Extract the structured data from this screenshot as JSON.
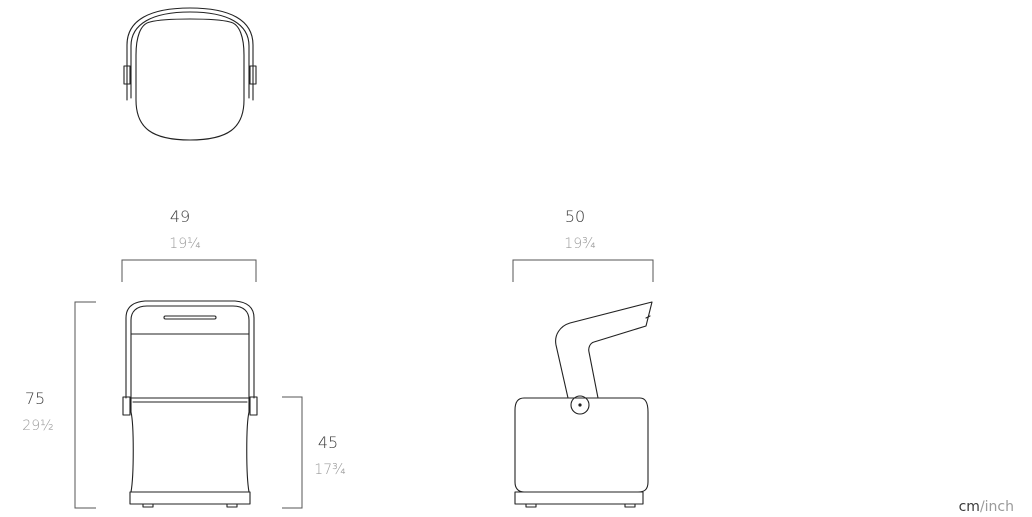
{
  "views": {
    "top": {},
    "front": {
      "width": {
        "cm": "49",
        "inch": "19¼"
      },
      "height": {
        "cm": "75",
        "inch": "29½"
      },
      "seat_height": {
        "cm": "45",
        "inch": "17¾"
      }
    },
    "side": {
      "depth": {
        "cm": "50",
        "inch": "19¾"
      }
    }
  },
  "units": {
    "cm": "cm",
    "separator": "/",
    "inch": "inch"
  }
}
